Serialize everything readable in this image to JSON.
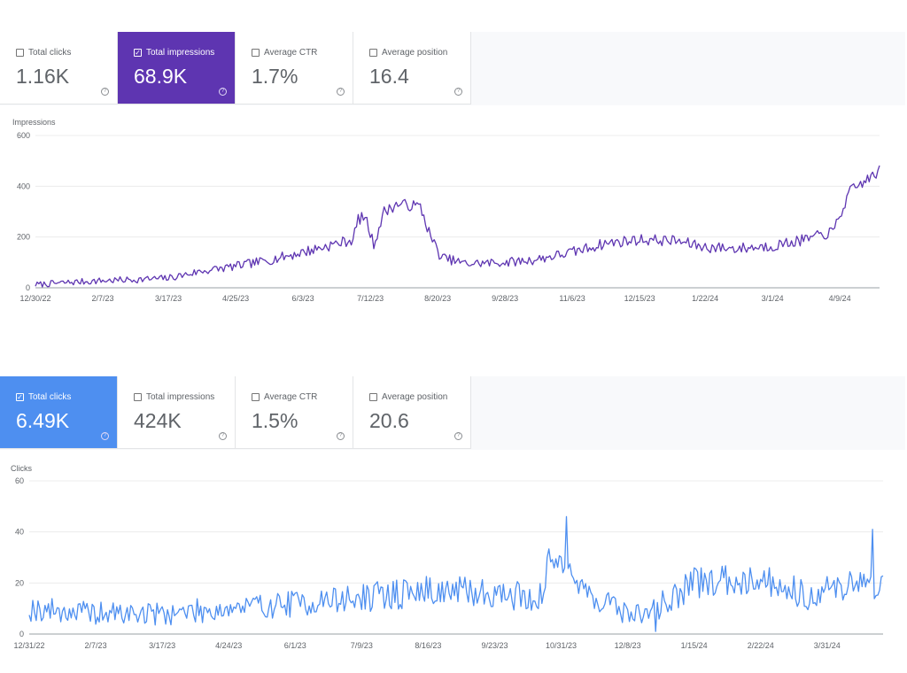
{
  "impressions_panel": {
    "metrics": [
      {
        "label": "Total clicks",
        "value": "1.16K",
        "checked": false
      },
      {
        "label": "Total impressions",
        "value": "68.9K",
        "checked": true
      },
      {
        "label": "Average CTR",
        "value": "1.7%",
        "checked": false
      },
      {
        "label": "Average position",
        "value": "16.4",
        "checked": false
      }
    ]
  },
  "clicks_panel": {
    "metrics": [
      {
        "label": "Total clicks",
        "value": "6.49K",
        "checked": true
      },
      {
        "label": "Total impressions",
        "value": "424K",
        "checked": false
      },
      {
        "label": "Average CTR",
        "value": "1.5%",
        "checked": false
      },
      {
        "label": "Average position",
        "value": "20.6",
        "checked": false
      }
    ]
  },
  "chart_data": [
    {
      "type": "line",
      "ylabel": "Impressions",
      "color": "#5e35b1",
      "ylim": [
        0,
        600
      ],
      "yticks": [
        0,
        200,
        400,
        600
      ],
      "xticks": [
        "12/30/22",
        "2/7/23",
        "3/17/23",
        "4/25/23",
        "6/3/23",
        "7/12/23",
        "8/20/23",
        "9/28/23",
        "11/6/23",
        "12/15/23",
        "1/22/24",
        "3/1/24",
        "4/9/24"
      ],
      "x_range": [
        "12/30/22",
        "5/2/24"
      ],
      "grid": true,
      "series": [
        {
          "knots": [
            [
              "12/30/22",
              12
            ],
            [
              "1/20/23",
              22
            ],
            [
              "2/7/23",
              28
            ],
            [
              "2/25/23",
              32
            ],
            [
              "3/17/23",
              38
            ],
            [
              "4/5/23",
              65
            ],
            [
              "4/25/23",
              85
            ],
            [
              "5/15/23",
              110
            ],
            [
              "6/3/23",
              140
            ],
            [
              "6/20/23",
              170
            ],
            [
              "7/2/23",
              190
            ],
            [
              "7/5/23",
              270
            ],
            [
              "7/9/23",
              280
            ],
            [
              "7/14/23",
              170
            ],
            [
              "7/20/23",
              300
            ],
            [
              "7/28/23",
              330
            ],
            [
              "8/10/23",
              320
            ],
            [
              "8/16/23",
              200
            ],
            [
              "8/22/23",
              120
            ],
            [
              "9/5/23",
              95
            ],
            [
              "9/28/23",
              100
            ],
            [
              "10/15/23",
              110
            ],
            [
              "11/6/23",
              140
            ],
            [
              "11/25/23",
              175
            ],
            [
              "12/15/23",
              190
            ],
            [
              "1/5/24",
              185
            ],
            [
              "1/22/24",
              160
            ],
            [
              "2/10/24",
              155
            ],
            [
              "3/1/24",
              165
            ],
            [
              "3/20/24",
              190
            ],
            [
              "4/5/24",
              220
            ],
            [
              "4/15/24",
              380
            ],
            [
              "5/2/24",
              460
            ]
          ],
          "noise": 22
        }
      ]
    },
    {
      "type": "line",
      "ylabel": "Clicks",
      "color": "#4e8ff0",
      "ylim": [
        0,
        60
      ],
      "yticks": [
        0,
        20,
        40,
        60
      ],
      "xticks": [
        "12/31/22",
        "2/7/23",
        "3/17/23",
        "4/24/23",
        "6/1/23",
        "7/9/23",
        "8/16/23",
        "9/23/23",
        "10/31/23",
        "12/8/23",
        "1/15/24",
        "2/22/24",
        "3/31/24"
      ],
      "x_range": [
        "12/31/22",
        "5/2/24"
      ],
      "grid": true,
      "series": [
        {
          "knots": [
            [
              "12/31/22",
              10
            ],
            [
              "2/7/23",
              8
            ],
            [
              "3/17/23",
              8
            ],
            [
              "4/24/23",
              10
            ],
            [
              "6/1/23",
              12
            ],
            [
              "7/9/23",
              14
            ],
            [
              "8/16/23",
              17
            ],
            [
              "9/23/23",
              16
            ],
            [
              "10/20/23",
              14
            ],
            [
              "10/24/23",
              28
            ],
            [
              "11/3/23",
              30
            ],
            [
              "11/10/23",
              18
            ],
            [
              "12/8/23",
              8
            ],
            [
              "12/20/23",
              8
            ],
            [
              "1/15/24",
              20
            ],
            [
              "2/22/24",
              22
            ],
            [
              "3/20/24",
              15
            ],
            [
              "4/15/24",
              20
            ],
            [
              "5/2/24",
              19
            ]
          ],
          "noise": 6,
          "peaks": [
            [
              "11/3/23",
              46
            ],
            [
              "4/26/24",
              41
            ],
            [
              "12/24/23",
              1
            ]
          ]
        }
      ]
    }
  ]
}
